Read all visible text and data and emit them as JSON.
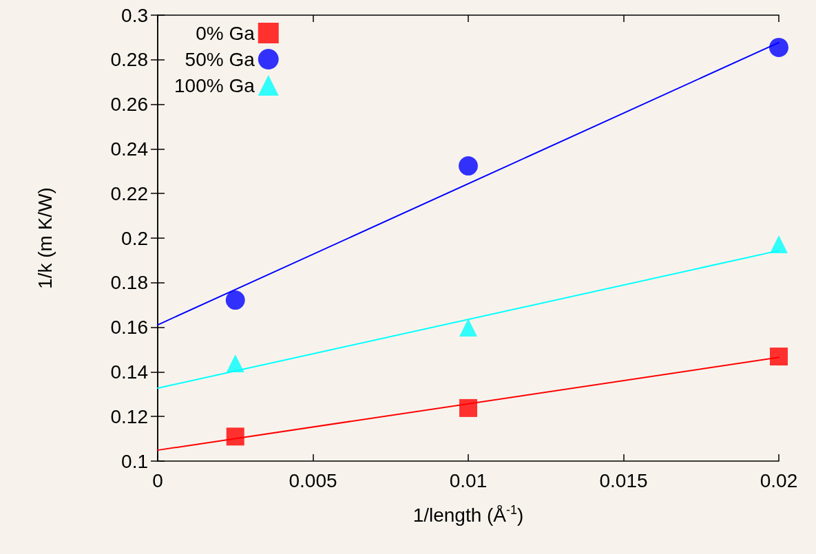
{
  "chart_data": {
    "type": "scatter",
    "xlabel": "1/length (Å$^{-1}$)",
    "ylabel": "1/k (m K/W)",
    "xlim": [
      0,
      0.02
    ],
    "xticks": [
      0,
      0.005,
      0.01,
      0.015,
      0.02
    ],
    "ylim": [
      0.1,
      0.3
    ],
    "yticks": [
      0.1,
      0.12,
      0.14,
      0.16,
      0.18,
      0.2,
      0.22,
      0.24,
      0.26,
      0.28,
      0.3
    ],
    "grid": false,
    "legend": "top left",
    "series": [
      {
        "name": "0% Ga",
        "color": "#ff0000",
        "marker": "square",
        "x": [
          0.0025,
          0.01,
          0.02
        ],
        "values": [
          0.111,
          0.1238,
          0.1469
        ]
      },
      {
        "name": "50% Ga",
        "color": "#0000ff",
        "marker": "circle",
        "x": [
          0.0025,
          0.01,
          0.02
        ],
        "values": [
          0.1722,
          0.2324,
          0.2855
        ]
      },
      {
        "name": "100% Ga",
        "color": "#00ffff",
        "marker": "triangle",
        "x": [
          0.0025,
          0.01,
          0.02
        ],
        "values": [
          0.1438,
          0.1599,
          0.1972
        ]
      },
      {
        "type": "line",
        "color": "#ff0000",
        "marker": "none",
        "line_style": "solid",
        "x": [
          0,
          0.02
        ],
        "values": [
          0.1049,
          0.1465
        ]
      },
      {
        "type": "line",
        "color": "#0000ff",
        "marker": "none",
        "line_style": "solid",
        "x": [
          0,
          0.02
        ],
        "values": [
          0.1611,
          0.2877
        ]
      },
      {
        "type": "line",
        "color": "#00ffff",
        "marker": "none",
        "line_style": "solid",
        "x": [
          0,
          0.02
        ],
        "values": [
          0.1327,
          0.1944
        ]
      }
    ]
  }
}
